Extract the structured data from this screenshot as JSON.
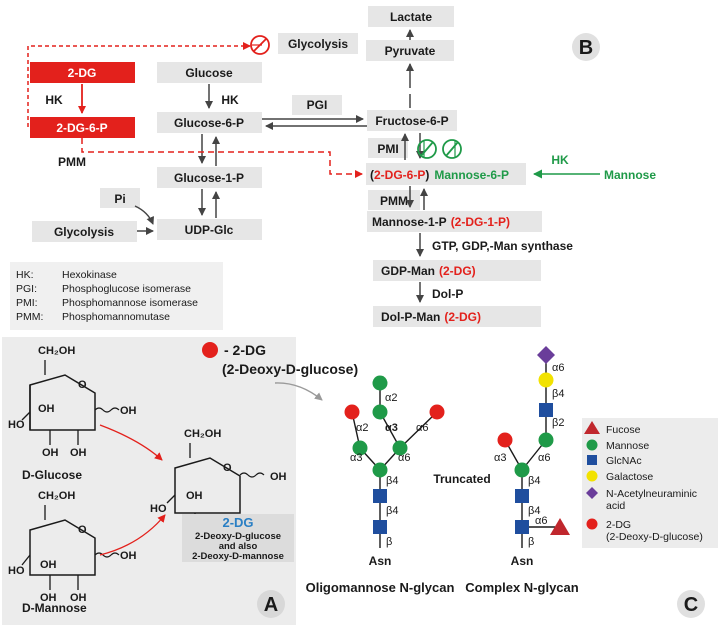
{
  "panel_labels": {
    "a": "A",
    "b": "B",
    "c": "C"
  },
  "panel_b": {
    "lactate": "Lactate",
    "pyruvate": "Pyruvate",
    "glycolysis_top": "Glycolysis",
    "two_dg": "2-DG",
    "two_dg_6p": "2-DG-6-P",
    "hk_left": "HK",
    "glucose": "Glucose",
    "hk_center": "HK",
    "glucose_6p": "Glucose-6-P",
    "pgi": "PGI",
    "fructose_6p": "Fructose-6-P",
    "pmm_left": "PMM",
    "glucose_1p": "Glucose-1-P",
    "pmi": "PMI",
    "mannose_6p": {
      "open": "(",
      "red": "2-DG-6-P",
      "close": ")",
      "green": "Mannose-6-P"
    },
    "hk_right": "HK",
    "mannose": "Mannose",
    "pi": "Pi",
    "glycolysis_bottom": "Glycolysis",
    "udp_glc": "UDP-Glc",
    "pmm_right": "PMM",
    "mannose_1p": {
      "black": "Mannose-1-P",
      "red": "(2-DG-1-P)"
    },
    "gtp_label": "GTP, GDP,-Man synthase",
    "gdp_man": {
      "black": "GDP-Man",
      "red": "(2-DG)"
    },
    "dol_p": "Dol-P",
    "dol_p_man": {
      "black": "Dol-P-Man",
      "red": "(2-DG)"
    },
    "legend": [
      {
        "abbr": "HK:",
        "full": "Hexokinase"
      },
      {
        "abbr": "PGI:",
        "full": "Phosphoglucose isomerase"
      },
      {
        "abbr": "PMI:",
        "full": "Phosphomannose isomerase"
      },
      {
        "abbr": "PMM:",
        "full": "Phosphomannomutase"
      }
    ]
  },
  "panel_a": {
    "ch2oh": "CH₂OH",
    "oh": "OH",
    "ho": "HO",
    "o": "O",
    "d_glucose": "D-Glucose",
    "d_mannose": "D-Mannose",
    "two_dg_title": "2-DG",
    "two_dg_desc": [
      "2-Deoxy-D-glucose",
      "and also",
      "2-Deoxy-D-mannose"
    ]
  },
  "panel_c": {
    "key_title": "- 2-DG",
    "key_sub": "(2-Deoxy-D-glucose)",
    "truncated": "Truncated",
    "oligomannose": "Oligomannose N-glycan",
    "complex": "Complex N-glycan",
    "asn": "Asn",
    "linkages": {
      "a2": "α2",
      "a3": "α3",
      "a6": "α6",
      "b4": "β4",
      "b2": "β2",
      "b": "β"
    },
    "legend": [
      {
        "shape": "triangle",
        "color": "#c0272d",
        "label": "Fucose"
      },
      {
        "shape": "circle",
        "color": "#1f9a48",
        "label": "Mannose"
      },
      {
        "shape": "square",
        "color": "#1f4e9e",
        "label": "GlcNAc"
      },
      {
        "shape": "circle",
        "color": "#f2e200",
        "label": "Galactose"
      },
      {
        "shape": "diamond",
        "color": "#6a3d9a",
        "label": "N-Acetylneuraminic acid"
      },
      {
        "shape": "circle",
        "color": "#e3211c",
        "label": "2-DG (2-Deoxy-D-glucose)"
      }
    ]
  },
  "colors": {
    "red": "#e3211c",
    "green": "#1f9a48",
    "blue": "#1f4e9e",
    "box": "#e6e6e6",
    "panel": "#ececec",
    "text": "#1a1a1a",
    "title_blue": "#2a7fc4"
  }
}
